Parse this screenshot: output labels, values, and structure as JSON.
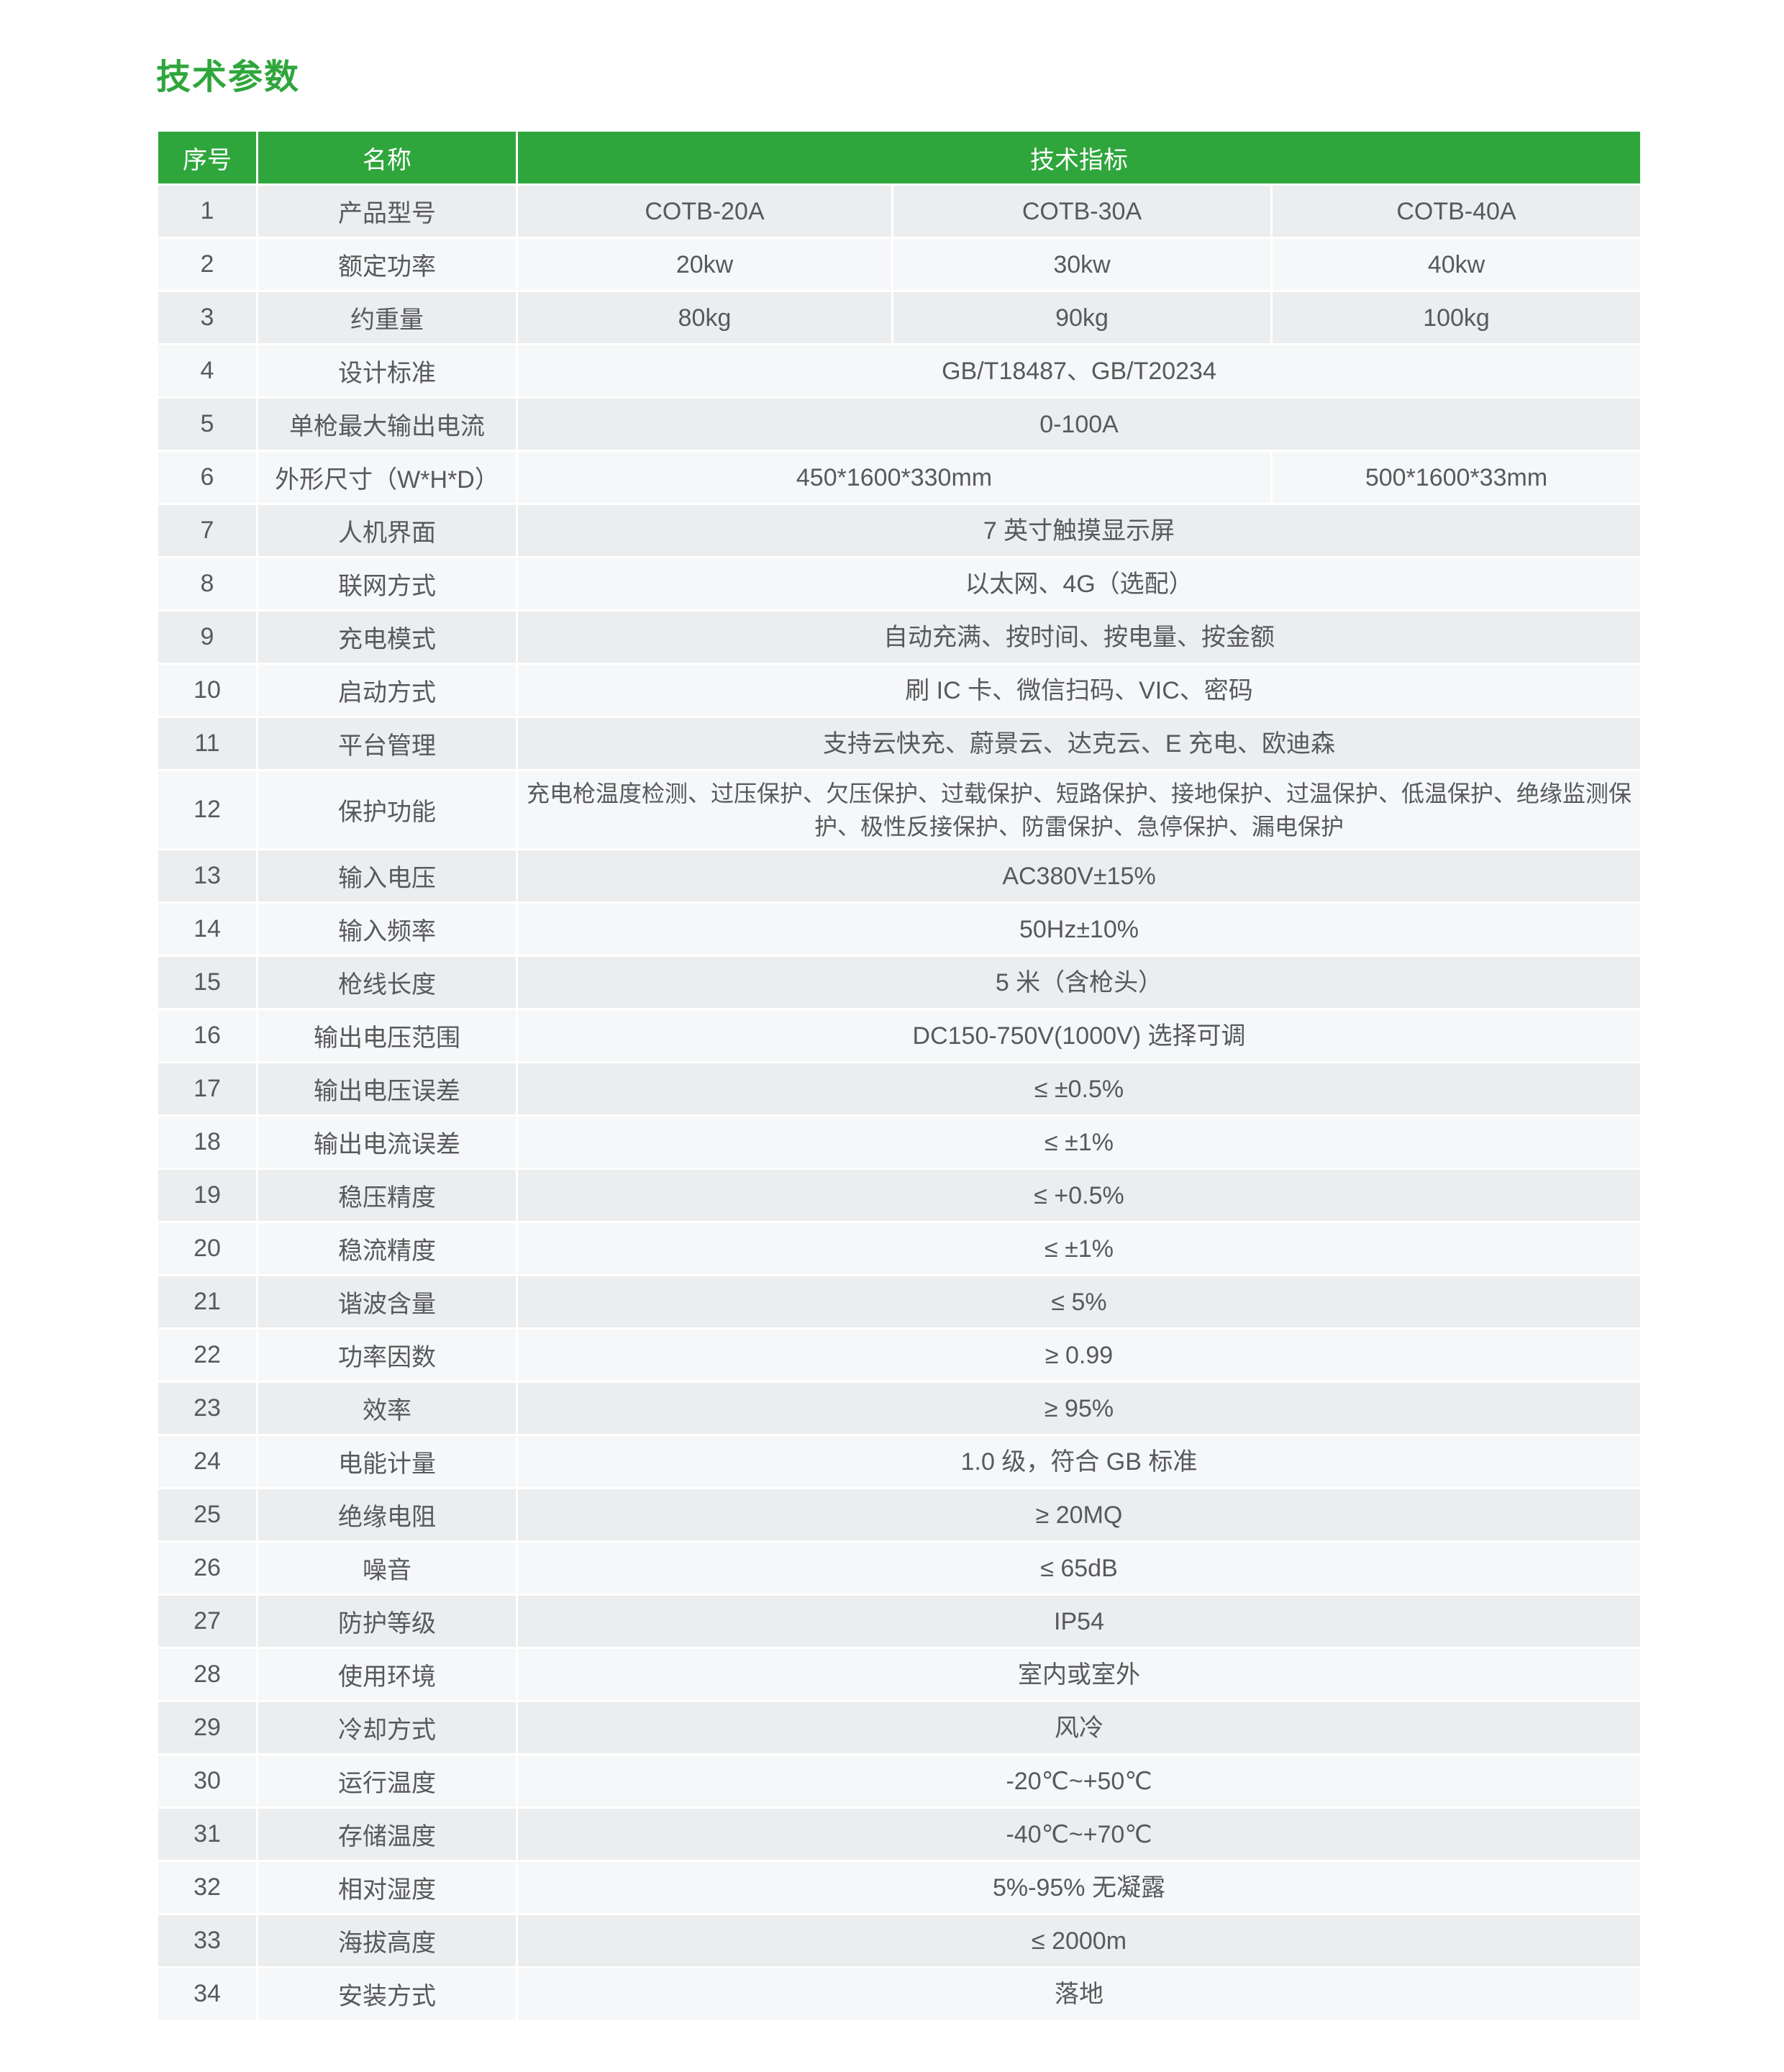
{
  "title": "技术参数",
  "colors": {
    "green": "#2fa63c",
    "row_odd": "#ebedee",
    "row_even": "#f6f7f8",
    "text": "#58595b"
  },
  "table": {
    "header": {
      "no": "序号",
      "name": "名称",
      "spec": "技术指标"
    },
    "rows": [
      {
        "no": "1",
        "name": "产品型号",
        "values": [
          {
            "text": "COTB-20A",
            "span": 1
          },
          {
            "text": "COTB-30A",
            "span": 1
          },
          {
            "text": "COTB-40A",
            "span": 1
          }
        ]
      },
      {
        "no": "2",
        "name": "额定功率",
        "values": [
          {
            "text": "20kw",
            "span": 1
          },
          {
            "text": "30kw",
            "span": 1
          },
          {
            "text": "40kw",
            "span": 1
          }
        ]
      },
      {
        "no": "3",
        "name": "约重量",
        "values": [
          {
            "text": "80kg",
            "span": 1
          },
          {
            "text": "90kg",
            "span": 1
          },
          {
            "text": "100kg",
            "span": 1
          }
        ]
      },
      {
        "no": "4",
        "name": "设计标准",
        "values": [
          {
            "text": "GB/T18487、GB/T20234",
            "span": 3
          }
        ]
      },
      {
        "no": "5",
        "name": "单枪最大输出电流",
        "values": [
          {
            "text": "0-100A",
            "span": 3
          }
        ]
      },
      {
        "no": "6",
        "name": "外形尺寸（W*H*D）",
        "values": [
          {
            "text": "450*1600*330mm",
            "span": 2
          },
          {
            "text": "500*1600*33mm",
            "span": 1
          }
        ]
      },
      {
        "no": "7",
        "name": "人机界面",
        "values": [
          {
            "text": "7 英寸触摸显示屏",
            "span": 3
          }
        ]
      },
      {
        "no": "8",
        "name": "联网方式",
        "values": [
          {
            "text": "以太网、4G（选配）",
            "span": 3
          }
        ]
      },
      {
        "no": "9",
        "name": "充电模式",
        "values": [
          {
            "text": "自动充满、按时间、按电量、按金额",
            "span": 3
          }
        ]
      },
      {
        "no": "10",
        "name": "启动方式",
        "values": [
          {
            "text": "刷 IC 卡、微信扫码、VIC、密码",
            "span": 3
          }
        ]
      },
      {
        "no": "11",
        "name": "平台管理",
        "values": [
          {
            "text": "支持云快充、蔚景云、达克云、E 充电、欧迪森",
            "span": 3
          }
        ]
      },
      {
        "no": "12",
        "name": "保护功能",
        "tall": true,
        "values": [
          {
            "text": "充电枪温度检测、过压保护、欠压保护、过载保护、短路保护、接地保护、过温保护、低温保护、绝缘监测保护、极性反接保护、防雷保护、急停保护、漏电保护",
            "span": 3
          }
        ]
      },
      {
        "no": "13",
        "name": "输入电压",
        "values": [
          {
            "text": "AC380V±15%",
            "span": 3
          }
        ]
      },
      {
        "no": "14",
        "name": "输入频率",
        "values": [
          {
            "text": "50Hz±10%",
            "span": 3
          }
        ]
      },
      {
        "no": "15",
        "name": "枪线长度",
        "values": [
          {
            "text": "5 米（含枪头）",
            "span": 3
          }
        ]
      },
      {
        "no": "16",
        "name": "输出电压范围",
        "values": [
          {
            "text": "DC150-750V(1000V) 选择可调",
            "span": 3
          }
        ]
      },
      {
        "no": "17",
        "name": "输出电压误差",
        "values": [
          {
            "text": "≤ ±0.5%",
            "span": 3
          }
        ]
      },
      {
        "no": "18",
        "name": "输出电流误差",
        "values": [
          {
            "text": "≤ ±1%",
            "span": 3
          }
        ]
      },
      {
        "no": "19",
        "name": "稳压精度",
        "values": [
          {
            "text": "≤ +0.5%",
            "span": 3
          }
        ]
      },
      {
        "no": "20",
        "name": "稳流精度",
        "values": [
          {
            "text": "≤ ±1%",
            "span": 3
          }
        ]
      },
      {
        "no": "21",
        "name": "谐波含量",
        "values": [
          {
            "text": "≤ 5%",
            "span": 3
          }
        ]
      },
      {
        "no": "22",
        "name": "功率因数",
        "values": [
          {
            "text": "≥ 0.99",
            "span": 3
          }
        ]
      },
      {
        "no": "23",
        "name": "效率",
        "values": [
          {
            "text": "≥ 95%",
            "span": 3
          }
        ]
      },
      {
        "no": "24",
        "name": "电能计量",
        "values": [
          {
            "text": "1.0 级，符合 GB 标准",
            "span": 3
          }
        ]
      },
      {
        "no": "25",
        "name": "绝缘电阻",
        "values": [
          {
            "text": "≥ 20MQ",
            "span": 3
          }
        ]
      },
      {
        "no": "26",
        "name": "噪音",
        "values": [
          {
            "text": "≤ 65dB",
            "span": 3
          }
        ]
      },
      {
        "no": "27",
        "name": "防护等级",
        "values": [
          {
            "text": "IP54",
            "span": 3
          }
        ]
      },
      {
        "no": "28",
        "name": "使用环境",
        "values": [
          {
            "text": "室内或室外",
            "span": 3
          }
        ]
      },
      {
        "no": "29",
        "name": "冷却方式",
        "values": [
          {
            "text": "风冷",
            "span": 3
          }
        ]
      },
      {
        "no": "30",
        "name": "运行温度",
        "values": [
          {
            "text": "-20℃~+50℃",
            "span": 3
          }
        ]
      },
      {
        "no": "31",
        "name": "存储温度",
        "values": [
          {
            "text": "-40℃~+70℃",
            "span": 3
          }
        ]
      },
      {
        "no": "32",
        "name": "相对湿度",
        "values": [
          {
            "text": "5%-95% 无凝露",
            "span": 3
          }
        ]
      },
      {
        "no": "33",
        "name": "海拔高度",
        "values": [
          {
            "text": "≤ 2000m",
            "span": 3
          }
        ]
      },
      {
        "no": "34",
        "name": "安装方式",
        "values": [
          {
            "text": "落地",
            "span": 3
          }
        ]
      }
    ]
  }
}
